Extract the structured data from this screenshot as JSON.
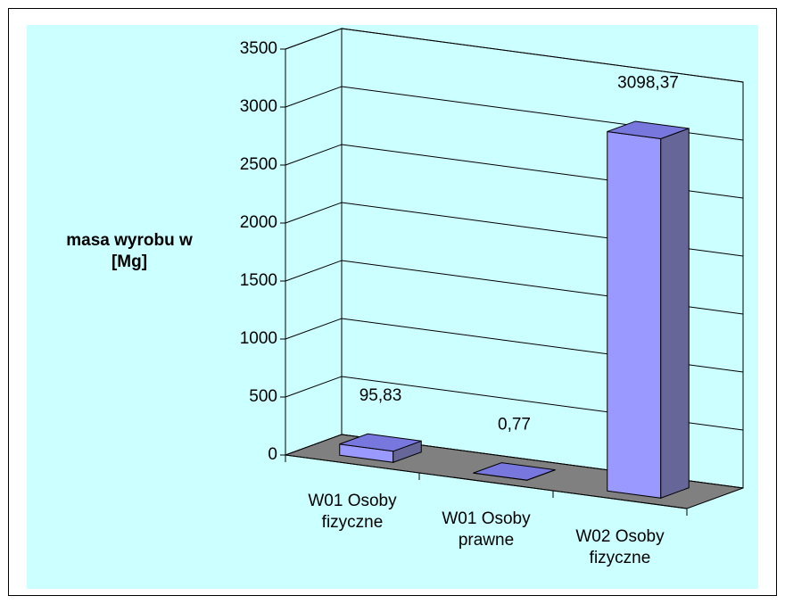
{
  "chart_data": {
    "type": "bar3d",
    "ylabel": "masa wyrobu w [Mg]",
    "categories": [
      "W01  Osoby fizyczne",
      "W01 Osoby prawne",
      "W02  Osoby fizyczne"
    ],
    "values": [
      95.83,
      0.77,
      3098.37
    ],
    "value_labels": [
      "95,83",
      "0,77",
      "3098,37"
    ],
    "color": "#9999ff",
    "ylim": [
      0,
      3500
    ],
    "yticks": [
      0,
      500,
      1000,
      1500,
      2000,
      2500,
      3000,
      3500
    ],
    "grid": true
  }
}
